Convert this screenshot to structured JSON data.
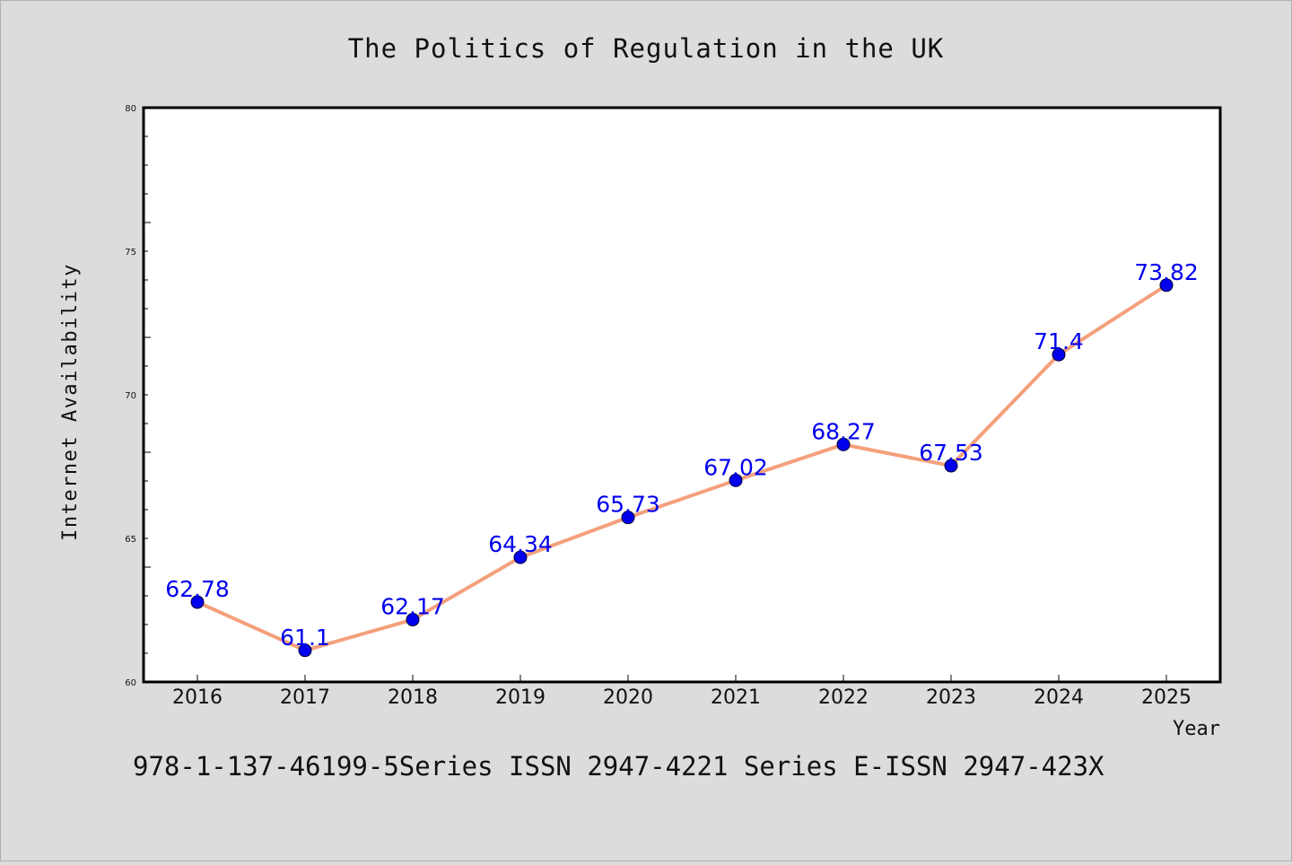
{
  "chart_data": {
    "type": "line",
    "title": "The Politics of Regulation in the UK",
    "xlabel": "Year",
    "ylabel": "Internet Availability",
    "categories": [
      "2016",
      "2017",
      "2018",
      "2019",
      "2020",
      "2021",
      "2022",
      "2023",
      "2024",
      "2025"
    ],
    "values": [
      62.78,
      61.1,
      62.17,
      64.34,
      65.73,
      67.02,
      68.27,
      67.53,
      71.4,
      73.82
    ],
    "data_labels": [
      "62.78",
      "61.1",
      "62.17",
      "64.34",
      "65.73",
      "67.02",
      "68.27",
      "67.53",
      "71.4",
      "73.82"
    ],
    "ylim": [
      60,
      80
    ],
    "yticks": [
      "60",
      "65",
      "70",
      "75",
      "80"
    ],
    "grid": false,
    "legend": "none",
    "line_color": "#f4a07c",
    "marker_color": "#0000ee",
    "label_color": "#0000ee",
    "background_color": "#dcdcdc",
    "plot_background": "#ffffff"
  },
  "footer": {
    "text": "978-1-137-46199-5Series ISSN 2947-4221 Series E-ISSN 2947-423X"
  }
}
